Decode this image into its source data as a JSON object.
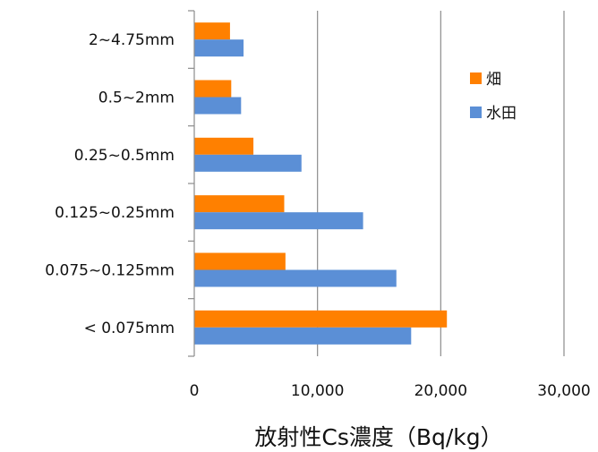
{
  "chart_data": {
    "type": "bar",
    "orientation": "horizontal",
    "categories": [
      "< 0.075mm",
      "0.075~0.125mm",
      "0.125~0.25mm",
      "0.25~0.5mm",
      "0.5~2mm",
      "2~4.75mm"
    ],
    "series": [
      {
        "name": "水田",
        "color": "#5b8fd6",
        "values": [
          17600,
          16400,
          13700,
          8700,
          3800,
          4000
        ]
      },
      {
        "name": "畑",
        "color": "#ff8000",
        "values": [
          20500,
          7400,
          7300,
          4800,
          3000,
          2900
        ]
      }
    ],
    "xlabel": "放射性Cs濃度（Bq/kg）",
    "ylabel": "",
    "xlim": [
      0,
      30000
    ],
    "xticks": [
      "0",
      "10,000",
      "20,000",
      "30,000"
    ],
    "xtick_values": [
      0,
      10000,
      20000,
      30000
    ],
    "grid": "vertical",
    "legend_position": "right",
    "legend_order": [
      "畑",
      "水田"
    ]
  }
}
